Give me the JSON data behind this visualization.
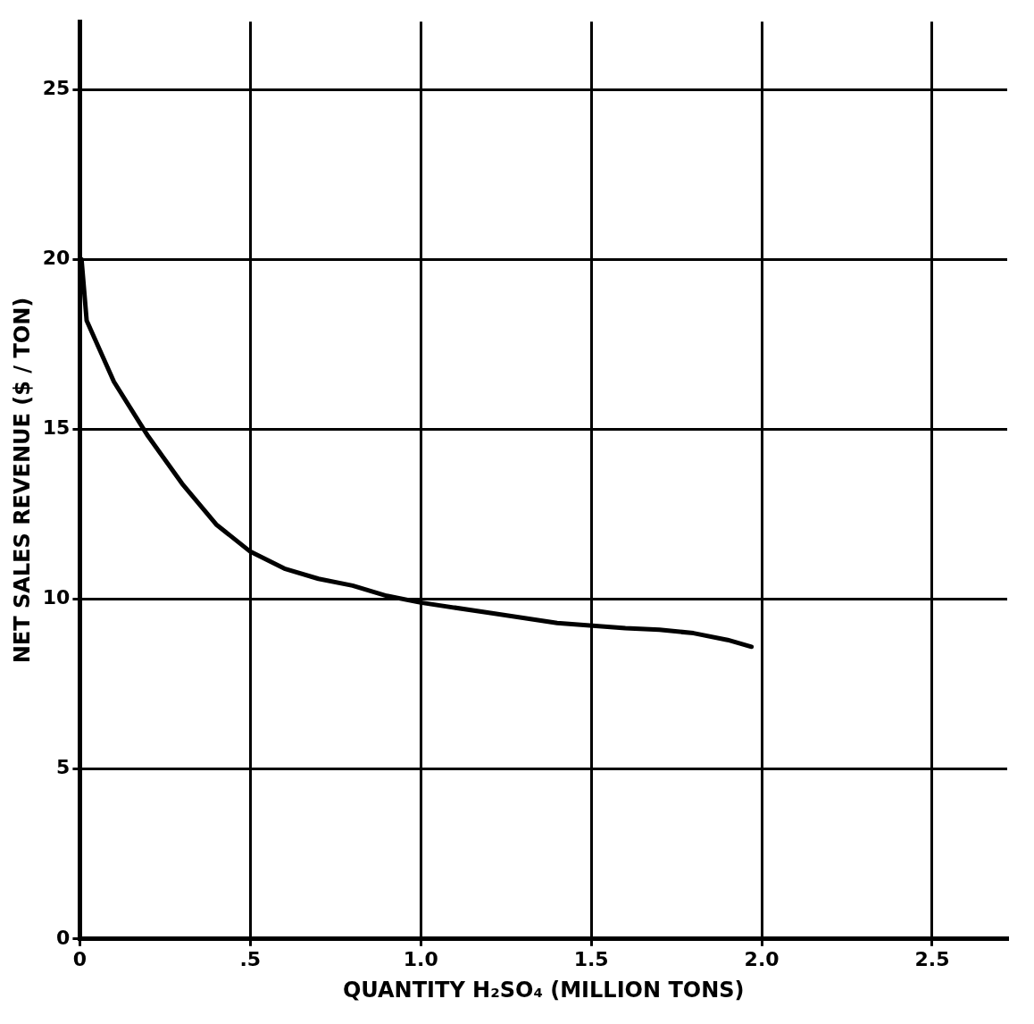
{
  "chart_data": {
    "type": "line",
    "xlabel": "QUANTITY H₂SO₄ (MILLION TONS)",
    "ylabel": "NET SALES REVENUE ($ / TON)",
    "x": [
      0.005,
      0.02,
      0.1,
      0.2,
      0.3,
      0.4,
      0.5,
      0.6,
      0.7,
      0.8,
      0.9,
      1.0,
      1.2,
      1.4,
      1.6,
      1.7,
      1.8,
      1.9,
      1.97
    ],
    "series": [
      {
        "color": "#000000",
        "values": [
          20,
          18.2,
          16.4,
          14.8,
          13.4,
          12.2,
          11.4,
          10.9,
          10.6,
          10.4,
          10.1,
          9.9,
          9.6,
          9.3,
          9.15,
          9.1,
          9.0,
          8.8,
          8.6
        ]
      }
    ],
    "xlim": [
      0,
      2.72
    ],
    "ylim": [
      0,
      27
    ],
    "xticks": [
      0,
      {
        "value": 0.5,
        "label": ".5"
      },
      {
        "value": 1,
        "label": "1.0"
      },
      {
        "value": 1.5,
        "label": "1.5"
      },
      {
        "value": 2,
        "label": "2.0"
      },
      {
        "value": 2.5,
        "label": "2.5"
      }
    ],
    "yticks": [
      0,
      5,
      10,
      15,
      20,
      25
    ],
    "grid": true,
    "legend": false,
    "marker": "none",
    "line_style": "solid"
  }
}
